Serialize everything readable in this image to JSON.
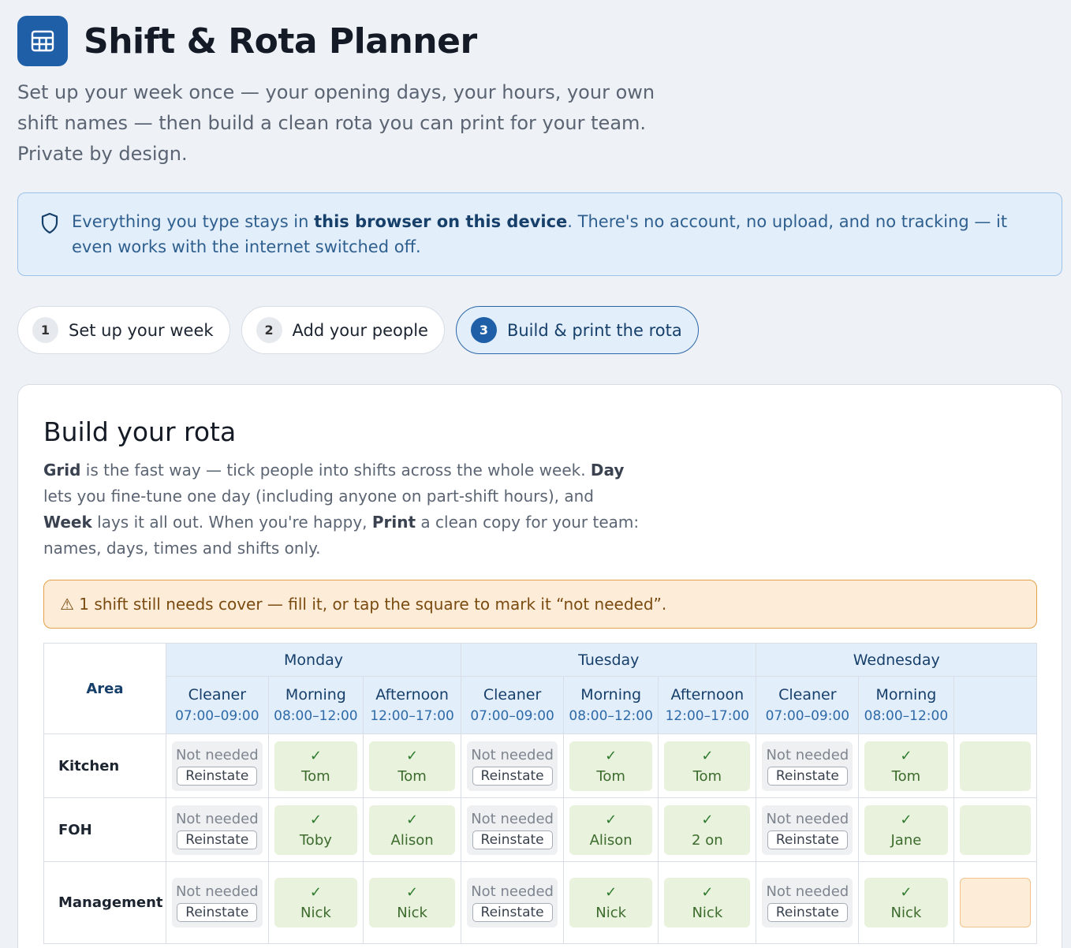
{
  "app": {
    "title": "Shift & Rota Planner",
    "intro": "Set up your week once — your opening days, your hours, your own shift names — then build a clean rota you can print for your team. Private by design."
  },
  "notice": {
    "before": "Everything you type stays in ",
    "bold": "this browser on this device",
    "after": ". There's no account, no upload, and no tracking — it even works with the internet switched off."
  },
  "steps": [
    {
      "num": "1",
      "label": "Set up your week"
    },
    {
      "num": "2",
      "label": "Add your people"
    },
    {
      "num": "3",
      "label": "Build & print the rota"
    }
  ],
  "card": {
    "heading": "Build your rota",
    "desc": {
      "b1": "Grid",
      "t1": " is the fast way — tick people into shifts across the whole week. ",
      "b2": "Day",
      "t2": " lets you fine-tune one day (including anyone on part-shift hours), and ",
      "b3": "Week",
      "t3": " lays it all out. When you're happy, ",
      "b4": "Print",
      "t4": " a clean copy for your team: names, days, times and shifts only."
    },
    "warning": "⚠ 1 shift still needs cover — fill it, or tap the square to mark it “not needed”."
  },
  "grid": {
    "area_label": "Area",
    "not_needed": "Not needed",
    "reinstate": "Reinstate",
    "check": "✓",
    "days": [
      "Monday",
      "Tuesday",
      "Wednesday"
    ],
    "shifts": [
      {
        "name": "Cleaner",
        "time": "07:00–09:00"
      },
      {
        "name": "Morning",
        "time": "08:00–12:00"
      },
      {
        "name": "Afternoon",
        "time": "12:00–17:00"
      },
      {
        "name": "Cleaner",
        "time": "07:00–09:00"
      },
      {
        "name": "Morning",
        "time": "08:00–12:00"
      },
      {
        "name": "Afternoon",
        "time": "12:00–17:00"
      },
      {
        "name": "Cleaner",
        "time": "07:00–09:00"
      },
      {
        "name": "Morning",
        "time": "08:00–12:00"
      }
    ],
    "rows": [
      {
        "area": "Kitchen",
        "cells": [
          "nn",
          "Tom",
          "Tom",
          "nn",
          "Tom",
          "Tom",
          "nn",
          "Tom"
        ]
      },
      {
        "area": "FOH",
        "cells": [
          "nn",
          "Toby",
          "Alison",
          "nn",
          "Alison",
          "2 on",
          "nn",
          "Jane"
        ]
      },
      {
        "area": "Management",
        "cells": [
          "nn",
          "Nick",
          "Nick",
          "nn",
          "Nick",
          "Nick",
          "nn",
          "Nick"
        ]
      }
    ]
  }
}
